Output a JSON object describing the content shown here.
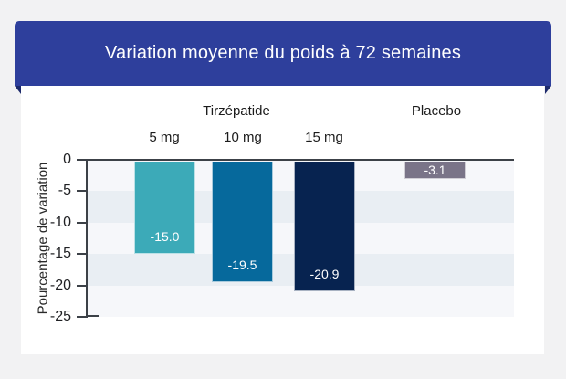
{
  "title": "Variation moyenne du poids à 72 semaines",
  "banner": {
    "bg": "#2e3f9c",
    "fold_color": "#1d2a6b",
    "text_color": "#ffffff"
  },
  "chart_data": {
    "type": "bar",
    "orientation": "vertical",
    "title": "Variation moyenne du poids à 72 semaines",
    "ylabel": "Pourcentage de variation",
    "ylim": [
      0,
      -25
    ],
    "yticks": [
      0,
      -5,
      -10,
      -15,
      -20,
      -25
    ],
    "ytick_labels": [
      "0",
      "-5",
      "-10",
      "-15",
      "-20",
      "-25"
    ],
    "grid": "horizontal-bands",
    "legend": "none",
    "groups": [
      {
        "label": "Tirzépatide",
        "bars": [
          "5 mg",
          "10 mg",
          "15 mg"
        ]
      },
      {
        "label": "Placebo",
        "bars": [
          "Placebo"
        ]
      }
    ],
    "bars": [
      {
        "id": "tirzepatide-5mg",
        "label": "5 mg",
        "value": -15.0,
        "display": "-15.0",
        "color": "#3caab8"
      },
      {
        "id": "tirzepatide-10mg",
        "label": "10 mg",
        "value": -19.5,
        "display": "-19.5",
        "color": "#06699c"
      },
      {
        "id": "tirzepatide-15mg",
        "label": "15 mg",
        "value": -20.9,
        "display": "-20.9",
        "color": "#072350"
      },
      {
        "id": "placebo",
        "label": "",
        "value": -3.1,
        "display": "-3.1",
        "color": "#7a7488"
      }
    ],
    "band_colors": [
      "#f6f7fa",
      "#e9eef3"
    ],
    "value_label_color": "#ffffff"
  }
}
